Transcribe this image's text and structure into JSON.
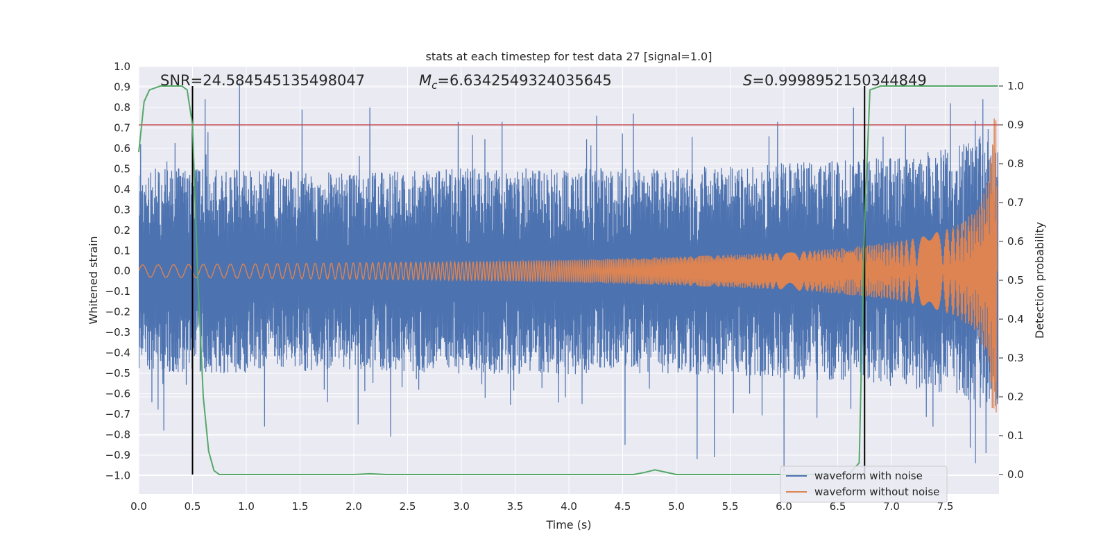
{
  "chart_data": {
    "type": "line",
    "title": "stats at each timestep for test data 27 [signal=1.0]",
    "xlabel": "Time (s)",
    "ylabel": "Whitened strain",
    "y2label": "Detection probability",
    "xlim": [
      0.0,
      8.0
    ],
    "ylim": [
      -1.09,
      1.0
    ],
    "y2lim": [
      -0.05,
      1.05
    ],
    "x_ticks": [
      0.0,
      0.5,
      1.0,
      1.5,
      2.0,
      2.5,
      3.0,
      3.5,
      4.0,
      4.5,
      5.0,
      5.5,
      6.0,
      6.5,
      7.0,
      7.5
    ],
    "x_tick_labels": [
      "0.0",
      "0.5",
      "1.0",
      "1.5",
      "2.0",
      "2.5",
      "3.0",
      "3.5",
      "4.0",
      "4.5",
      "5.0",
      "5.5",
      "6.0",
      "6.5",
      "7.0",
      "7.5"
    ],
    "y_ticks": [
      1.0,
      0.9,
      0.8,
      0.7,
      0.6,
      0.5,
      0.4,
      0.3,
      0.2,
      0.1,
      0.0,
      -0.1,
      -0.2,
      -0.3,
      -0.4,
      -0.5,
      -0.6,
      -0.7,
      -0.8,
      -0.9,
      -1.0
    ],
    "y_tick_labels": [
      "1.0",
      "0.9",
      "0.8",
      "0.7",
      "0.6",
      "0.5",
      "0.4",
      "0.3",
      "0.2",
      "0.1",
      "0.0",
      "−0.1",
      "−0.2",
      "−0.3",
      "−0.4",
      "−0.5",
      "−0.6",
      "−0.7",
      "−0.8",
      "−0.9",
      "−1.0"
    ],
    "y2_ticks": [
      1.0,
      0.9,
      0.8,
      0.7,
      0.6,
      0.5,
      0.4,
      0.3,
      0.2,
      0.1,
      0.0
    ],
    "y2_tick_labels": [
      "1.0",
      "0.9",
      "0.8",
      "0.7",
      "0.6",
      "0.5",
      "0.4",
      "0.3",
      "0.2",
      "0.1",
      "0.0"
    ],
    "annotations": {
      "snr": "SNR=24.584545135498047",
      "mc_symbol": "M",
      "mc_sub": "c",
      "mc_value": "=6.6342549324035645",
      "s_symbol": "S",
      "s_value": "=0.9998952150344849"
    },
    "threshold_line": {
      "y2": 0.9,
      "color": "#c44e52"
    },
    "vertical_lines": [
      0.5,
      6.75
    ],
    "series": [
      {
        "name": "waveform with noise",
        "color": "#4c72b0",
        "envelope_x": [
          0.0,
          1.0,
          2.0,
          3.0,
          4.0,
          5.0,
          6.0,
          6.5,
          7.0,
          7.5,
          7.9
        ],
        "envelope_typical": [
          0.42,
          0.42,
          0.4,
          0.42,
          0.42,
          0.42,
          0.44,
          0.45,
          0.47,
          0.5,
          0.58
        ],
        "peaks": [
          {
            "x": 0.02,
            "y": 0.62
          },
          {
            "x": 0.62,
            "y": 0.84
          },
          {
            "x": 0.94,
            "y": 0.92
          },
          {
            "x": 1.52,
            "y": 0.79
          },
          {
            "x": 2.15,
            "y": 0.8
          },
          {
            "x": 2.97,
            "y": 0.73
          },
          {
            "x": 3.38,
            "y": 0.73
          },
          {
            "x": 4.26,
            "y": 0.76
          },
          {
            "x": 4.6,
            "y": 0.77
          },
          {
            "x": 5.94,
            "y": 0.73
          },
          {
            "x": 6.65,
            "y": 0.8
          },
          {
            "x": 7.55,
            "y": 0.82
          },
          {
            "x": 7.85,
            "y": 0.84
          }
        ],
        "troughs": [
          {
            "x": 0.23,
            "y": -0.78
          },
          {
            "x": 1.17,
            "y": -0.76
          },
          {
            "x": 2.04,
            "y": -0.75
          },
          {
            "x": 2.34,
            "y": -0.81
          },
          {
            "x": 4.52,
            "y": -0.85
          },
          {
            "x": 5.19,
            "y": -0.92
          },
          {
            "x": 5.35,
            "y": -0.91
          },
          {
            "x": 6.0,
            "y": -0.98
          },
          {
            "x": 7.78,
            "y": -0.94
          },
          {
            "x": 7.88,
            "y": -0.89
          }
        ]
      },
      {
        "name": "waveform without noise",
        "color": "#dd8452",
        "amplitude_x": [
          0.0,
          1.0,
          2.0,
          3.0,
          4.0,
          5.0,
          6.0,
          6.5,
          7.0,
          7.3,
          7.6,
          7.8,
          7.9,
          7.95
        ],
        "amplitude": [
          0.03,
          0.035,
          0.04,
          0.045,
          0.055,
          0.07,
          0.09,
          0.11,
          0.14,
          0.17,
          0.22,
          0.3,
          0.45,
          0.75
        ],
        "cycles": 520
      },
      {
        "name": "detection probability",
        "color": "#55a868",
        "axis": "right",
        "x": [
          0.0,
          0.05,
          0.1,
          0.2,
          0.3,
          0.4,
          0.45,
          0.5,
          0.55,
          0.6,
          0.65,
          0.7,
          0.75,
          1.0,
          2.0,
          2.15,
          2.3,
          3.0,
          4.0,
          4.6,
          4.7,
          4.8,
          4.9,
          5.0,
          5.5,
          6.0,
          6.5,
          6.6,
          6.7,
          6.75,
          6.8,
          6.9,
          7.0,
          7.5,
          7.99
        ],
        "y": [
          0.83,
          0.96,
          0.99,
          1.0,
          1.0,
          1.0,
          0.99,
          0.9,
          0.5,
          0.2,
          0.06,
          0.01,
          0.0,
          0.0,
          0.0,
          0.002,
          0.0,
          0.0,
          0.0,
          0.0,
          0.005,
          0.012,
          0.006,
          0.0,
          0.0,
          0.0,
          0.0,
          0.0,
          0.03,
          0.65,
          0.99,
          1.0,
          1.0,
          1.0,
          1.0
        ]
      }
    ],
    "legend": {
      "position": "lower-right",
      "entries": [
        {
          "label": "waveform with noise",
          "color": "#4c72b0"
        },
        {
          "label": "waveform without noise",
          "color": "#dd8452"
        }
      ]
    },
    "background": "#eaeaf2",
    "grid": true
  }
}
